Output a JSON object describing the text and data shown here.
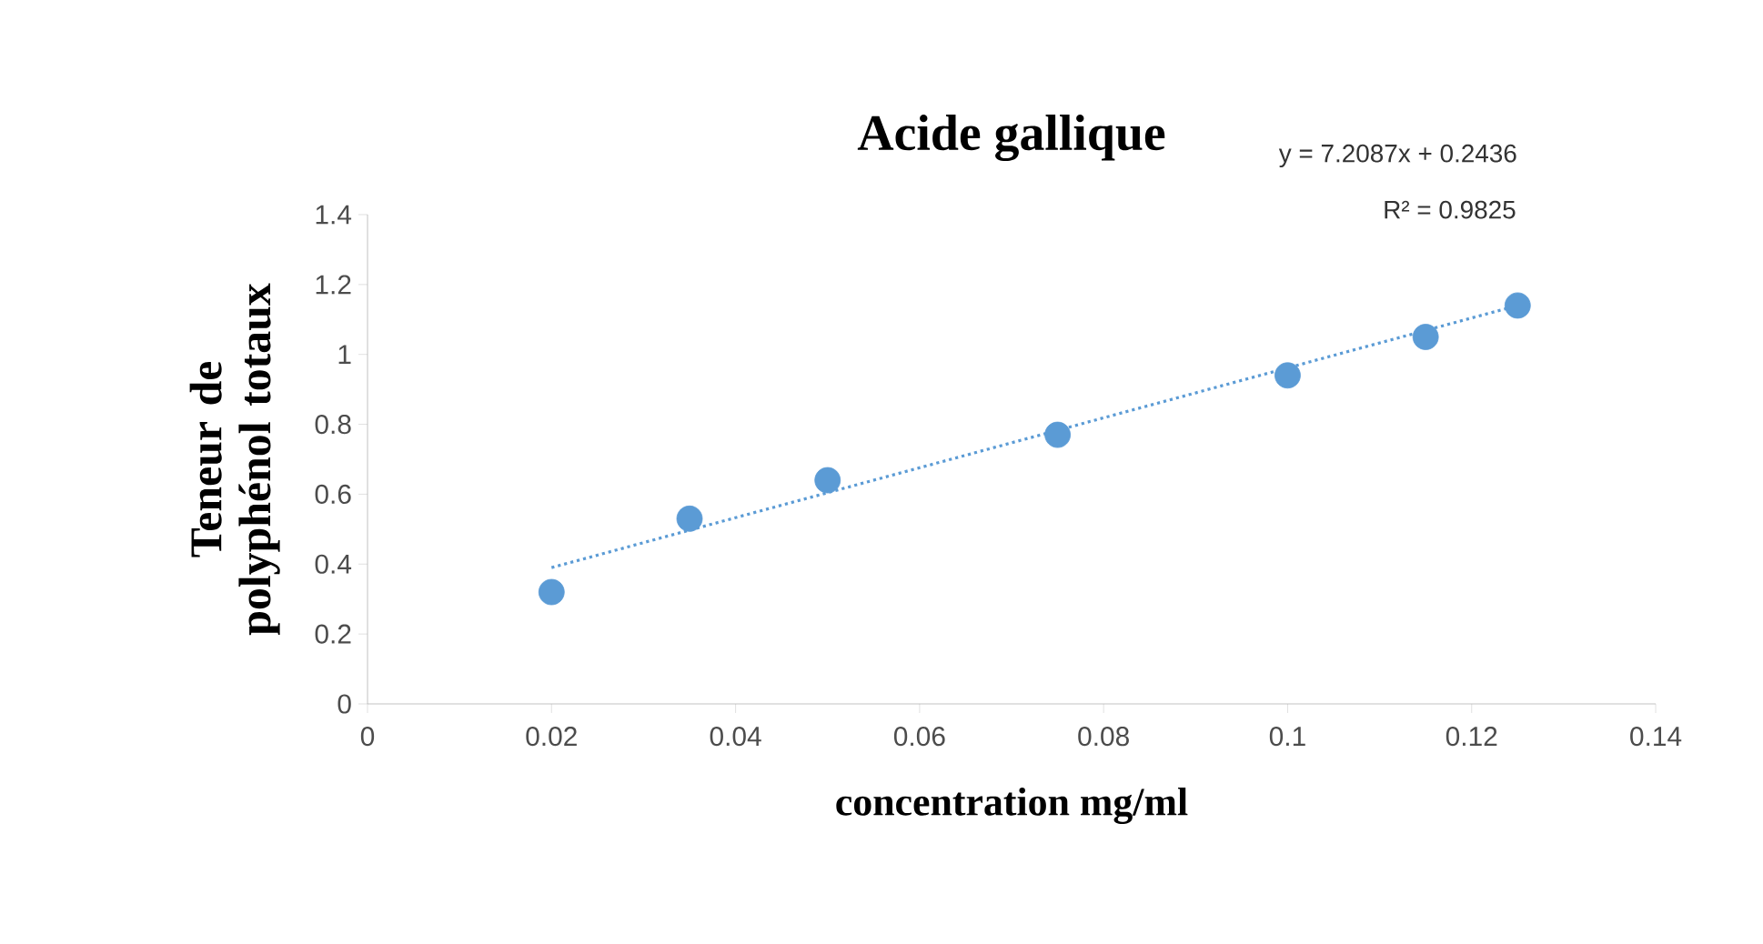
{
  "chart_data": {
    "type": "scatter",
    "title": "Acide gallique",
    "xlabel": "concentration  mg/ml",
    "ylabel": "Teneur  de polyphénol totaux",
    "annotations": [
      "y = 7.2087x + 0.2436",
      "R² = 0.9825"
    ],
    "xlim": [
      0,
      0.14
    ],
    "xticks": [
      0,
      0.02,
      0.04,
      0.06,
      0.08,
      0.1,
      0.12,
      0.14
    ],
    "ylim": [
      0,
      1.4
    ],
    "yticks": [
      0,
      0.2,
      0.4,
      0.6,
      0.8,
      1,
      1.2,
      1.4
    ],
    "grid": false,
    "marker": "circle",
    "series": [
      {
        "color": "#5b9bd5",
        "x": [
          0.02,
          0.035,
          0.05,
          0.075,
          0.1,
          0.115,
          0.125
        ],
        "values": [
          0.32,
          0.53,
          0.64,
          0.77,
          0.94,
          1.05,
          1.14
        ]
      },
      {
        "type": "line",
        "color": "#5b9bd5",
        "line_style": "dotted",
        "marker": "none",
        "x": [
          0.02,
          0.125
        ],
        "values": [
          0.39,
          1.14
        ]
      }
    ]
  }
}
